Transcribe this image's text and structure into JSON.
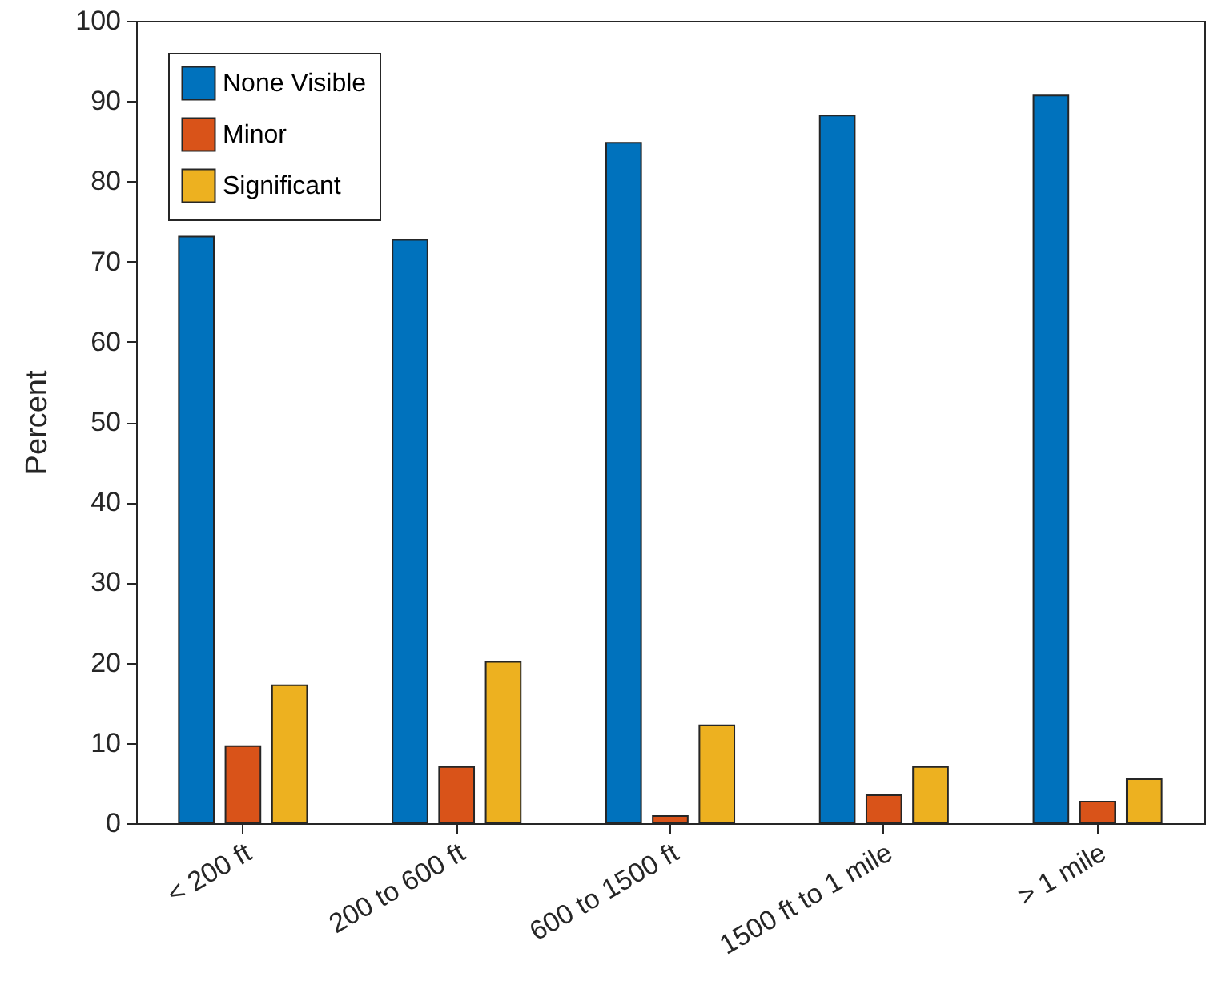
{
  "chart_data": {
    "type": "bar",
    "ylabel": "Percent",
    "categories": [
      "< 200 ft",
      "200 to 600 ft",
      "600 to 1500 ft",
      "1500 ft to 1 mile",
      "> 1 mile"
    ],
    "series": [
      {
        "name": "None Visible",
        "color": "#0072bd",
        "values": [
          73.1,
          72.7,
          84.8,
          88.2,
          90.7
        ]
      },
      {
        "name": "Minor",
        "color": "#d95319",
        "values": [
          9.6,
          7.0,
          0.9,
          3.5,
          2.7
        ]
      },
      {
        "name": "Significant",
        "color": "#edb120",
        "values": [
          17.2,
          20.1,
          12.2,
          7.0,
          5.5
        ]
      }
    ],
    "ylim": [
      0,
      100
    ],
    "yticks": [
      0,
      10,
      20,
      30,
      40,
      50,
      60,
      70,
      80,
      90,
      100
    ],
    "grid": false,
    "legend": "top left"
  }
}
